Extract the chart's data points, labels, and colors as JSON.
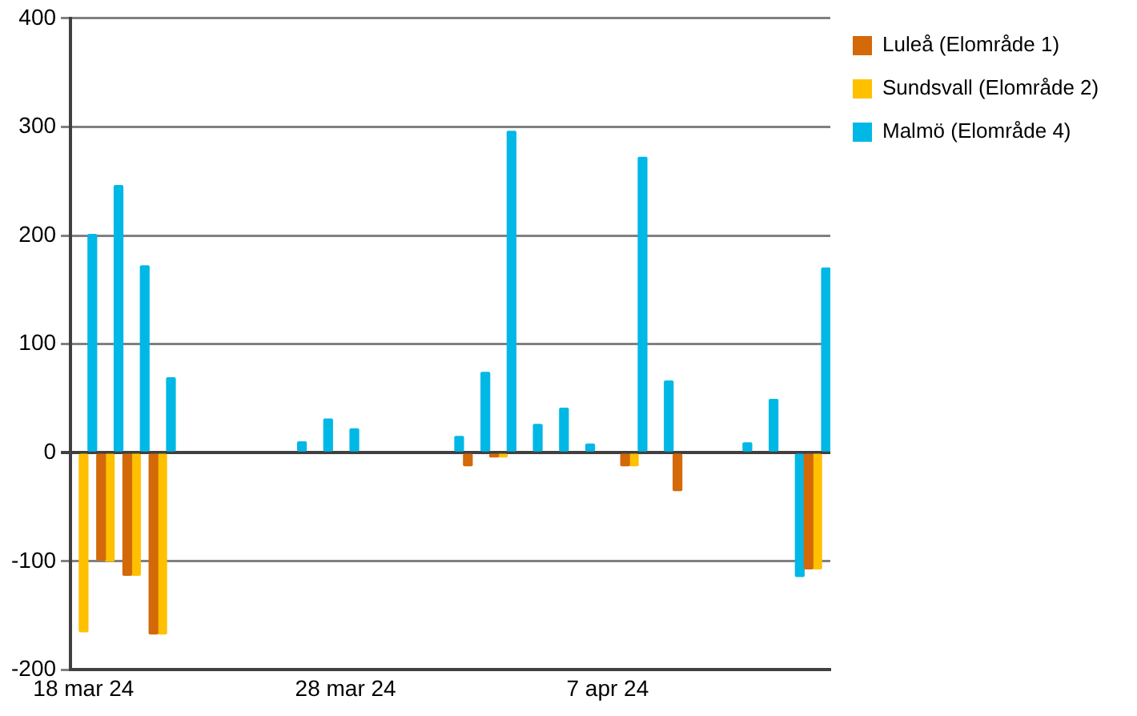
{
  "chart_data": {
    "type": "bar",
    "categories": [
      "18 mar 24",
      null,
      null,
      null,
      null,
      null,
      null,
      null,
      null,
      null,
      "28 mar 24",
      null,
      null,
      null,
      null,
      null,
      null,
      null,
      null,
      null,
      "7 apr 24",
      null,
      null,
      null,
      null,
      null,
      null,
      null,
      null
    ],
    "series": [
      {
        "name": "Luleå (Elområde 1)",
        "color": "#d4690a",
        "values": [
          null,
          -99,
          -113,
          -167,
          null,
          null,
          null,
          null,
          null,
          null,
          null,
          null,
          null,
          null,
          null,
          -12,
          -4,
          null,
          null,
          null,
          null,
          -12,
          null,
          -35,
          null,
          null,
          null,
          null,
          -107
        ]
      },
      {
        "name": "Sundsvall (Elområde 2)",
        "color": "#ffc000",
        "values": [
          -165,
          -100,
          -113,
          -167,
          null,
          null,
          null,
          null,
          null,
          null,
          null,
          null,
          null,
          null,
          null,
          null,
          -4,
          null,
          null,
          null,
          null,
          -12,
          null,
          null,
          null,
          null,
          null,
          null,
          -107
        ]
      },
      {
        "name": "Malmö (Elområde 4)",
        "color": "#00b8e6",
        "values": [
          201,
          246,
          172,
          69,
          null,
          null,
          null,
          null,
          10,
          31,
          22,
          null,
          null,
          null,
          15,
          74,
          296,
          26,
          41,
          8,
          null,
          272,
          66,
          null,
          null,
          9,
          49,
          -114,
          170
        ]
      }
    ],
    "ylim": [
      -200,
      400
    ],
    "yticks": [
      -200,
      -100,
      0,
      100,
      200,
      300,
      400
    ],
    "grid": "y",
    "legend": "right"
  }
}
